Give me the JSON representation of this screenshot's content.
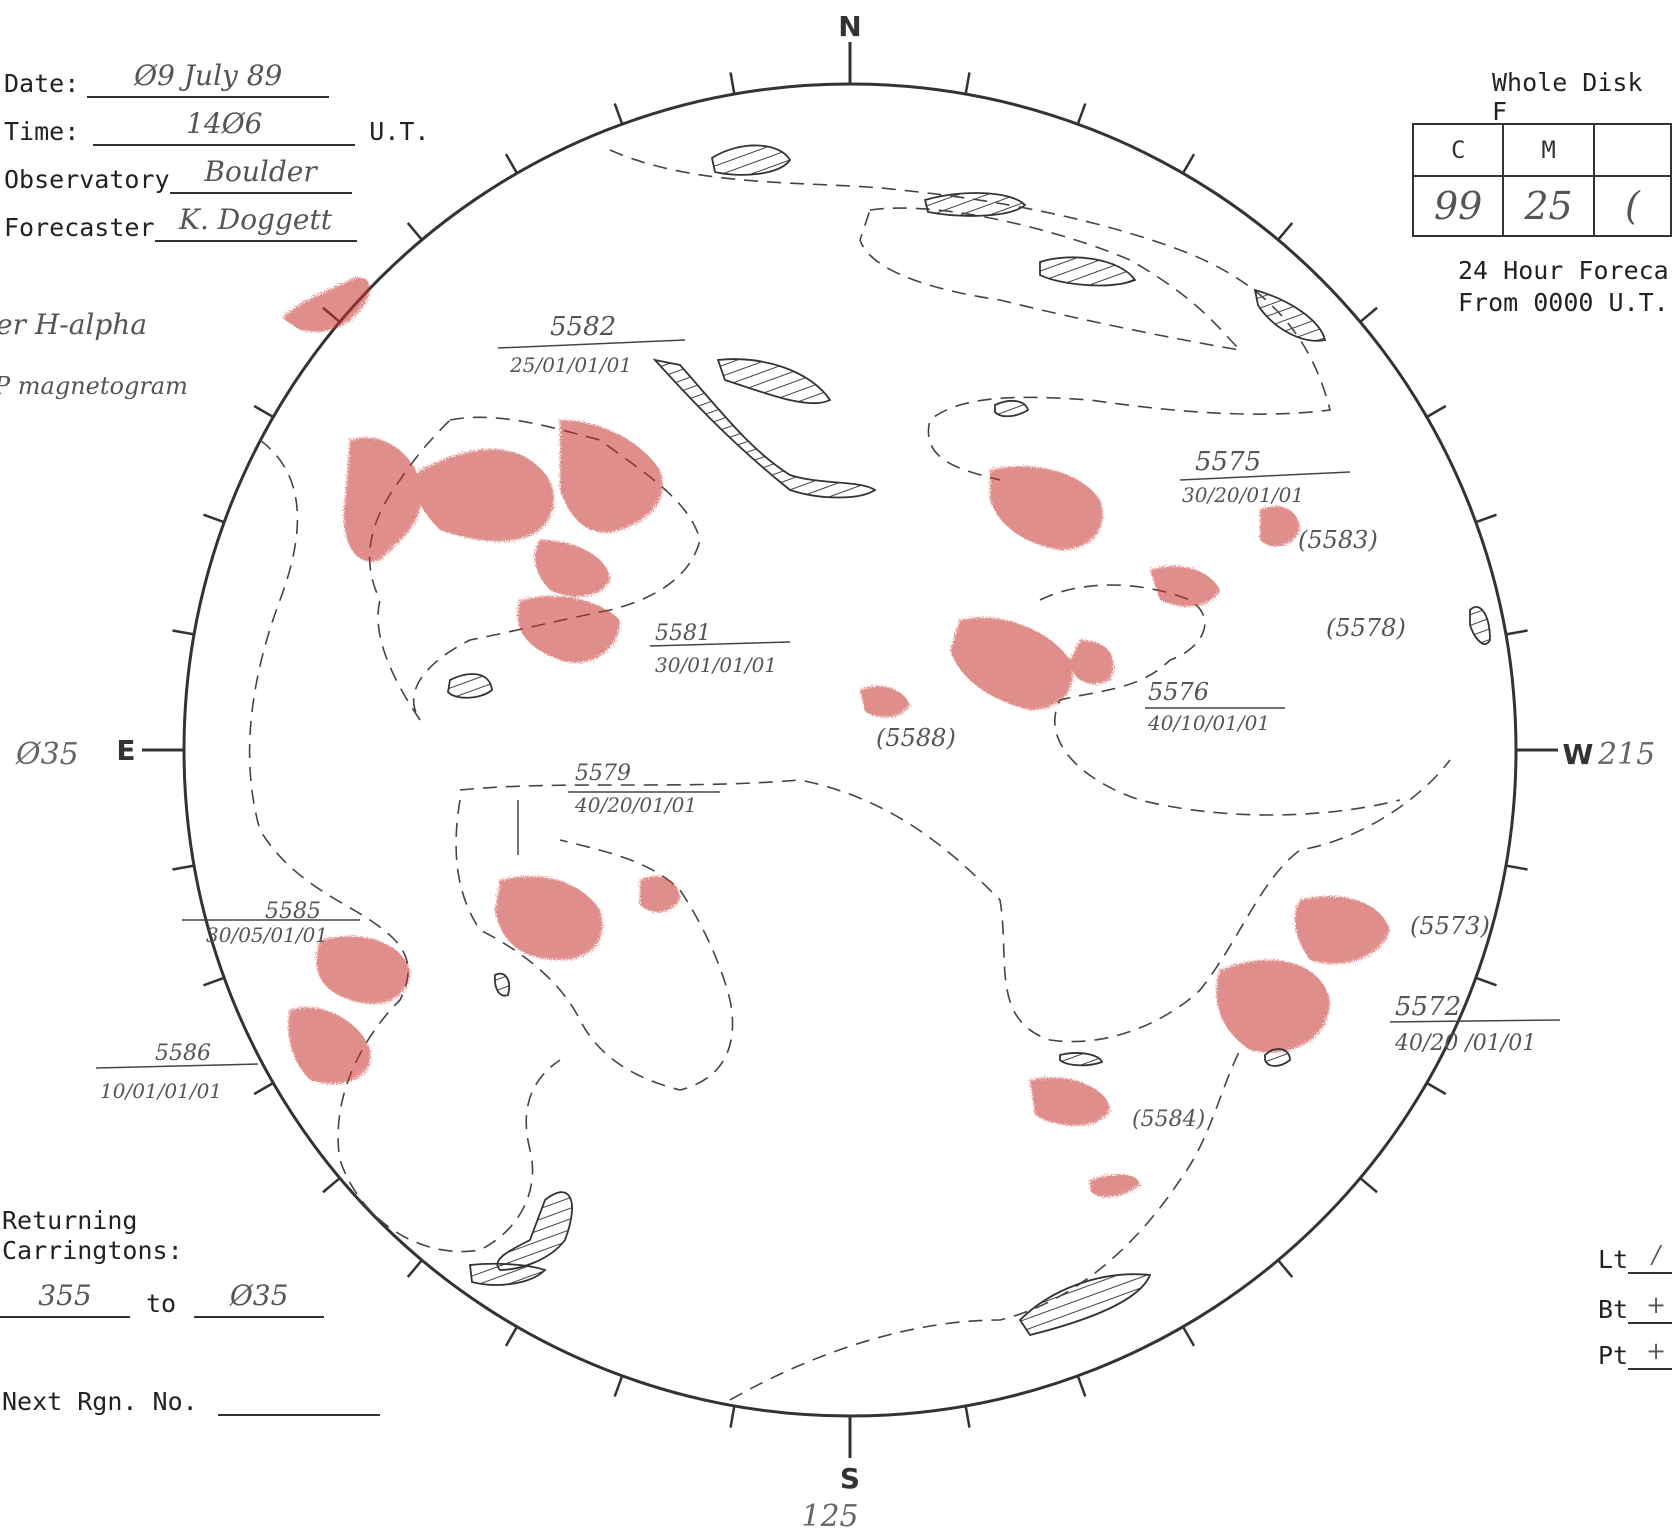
{
  "form": {
    "date_label": "Date:",
    "date_value": "Ø9 July 89",
    "time_label": "Time:",
    "time_value": "14Ø6",
    "time_unit": "U.T.",
    "observatory_label": "Observatory",
    "observatory_value": "Boulder",
    "forecaster_label": "Forecaster",
    "forecaster_value": "K. Doggett",
    "note_1": "er H-alpha",
    "note_2": "P magnetogram"
  },
  "compass": {
    "north": "N",
    "south": "S",
    "east": "E",
    "west": "W",
    "east_value": "Ø35",
    "west_value": "215",
    "south_value": "125"
  },
  "whole_disk": {
    "title": "Whole Disk F",
    "headers": [
      "C",
      "M",
      ""
    ],
    "values": [
      "99",
      "25",
      "("
    ],
    "forecast_line_1": "24 Hour Foreca",
    "forecast_line_2": "From 0000 U.T."
  },
  "regions": [
    {
      "number": "5582",
      "code": "25/01/01/01"
    },
    {
      "number": "5575",
      "code": "30/20/01/01"
    },
    {
      "number": "5581",
      "code": "30/01/01/01"
    },
    {
      "number": "5576",
      "code": "40/10/01/01"
    },
    {
      "number": "5579",
      "code": "40/20/01/01"
    },
    {
      "number": "5585",
      "code": "30/05/01/01"
    },
    {
      "number": "5586",
      "code": "10/01/01/01"
    },
    {
      "number": "5572",
      "code": "40/20 /01/01"
    }
  ],
  "returning_regions": [
    "(5583)",
    "(5578)",
    "(5588)",
    "(5573)",
    "(5584)"
  ],
  "returning_carringtons": {
    "label_1": "Returning",
    "label_2": "Carringtons:",
    "from": "355",
    "to_label": "to",
    "to": "Ø35"
  },
  "next_region": {
    "label": "Next Rgn. No.",
    "value": ""
  },
  "orientation": {
    "lt_label": "Lt",
    "lt_value": "/",
    "bt_label": "Bt",
    "bt_value": "+",
    "pt_label": "Pt",
    "pt_value": "+"
  },
  "colors": {
    "plage": "#c8322f",
    "ink": "#333333",
    "pencil": "#555555"
  }
}
